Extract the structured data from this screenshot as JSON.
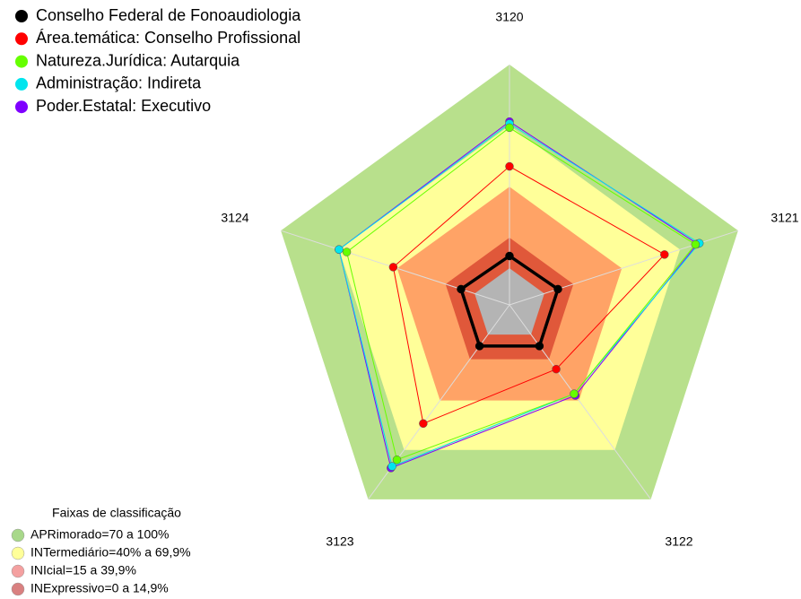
{
  "chart_data": {
    "type": "radar",
    "categories": [
      "3120",
      "3121",
      "3122",
      "3123",
      "3124"
    ],
    "rlim": [
      -18,
      100
    ],
    "series": [
      {
        "name": "Conselho Federal de Fonoaudiologia",
        "color": "#000000",
        "values": [
          6,
          7,
          7,
          7,
          7
        ]
      },
      {
        "name": "Área.temática: Conselho Profissional",
        "color": "#ff0000",
        "values": [
          50,
          62,
          21,
          54,
          42
        ]
      },
      {
        "name": "Natureza.Jurídica: Autarquia",
        "color": "#66ff00",
        "values": [
          69,
          78,
          36,
          76,
          66
        ]
      },
      {
        "name": "Administração: Indireta",
        "color": "#00e5ee",
        "values": [
          71,
          80,
          36,
          80,
          70
        ]
      },
      {
        "name": "Poder.Estatal: Executivo",
        "color": "#7f00ff",
        "values": [
          72,
          79,
          37,
          81,
          70
        ]
      }
    ],
    "bands_title": "Faixas de classificação",
    "bands": [
      {
        "name": "APRimorado=70 a 100%",
        "value": 100,
        "color": "#b8e08c",
        "legend_color": "#a8d88a"
      },
      {
        "name": "INTermediário=40% a 69,9%",
        "value": 70,
        "color": "#ffff99",
        "legend_color": "#ffff99"
      },
      {
        "name": "INIcial=15 a 39,9%",
        "value": 40,
        "color": "#ffa366",
        "legend_color": "#f4a0a0"
      },
      {
        "name": "INExpressivo=0 a 14,9%",
        "value": 15,
        "color": "#e0583a",
        "legend_color": "#d98080"
      }
    ],
    "base_band": {
      "value": 0,
      "color": "#b4b4b4"
    }
  }
}
